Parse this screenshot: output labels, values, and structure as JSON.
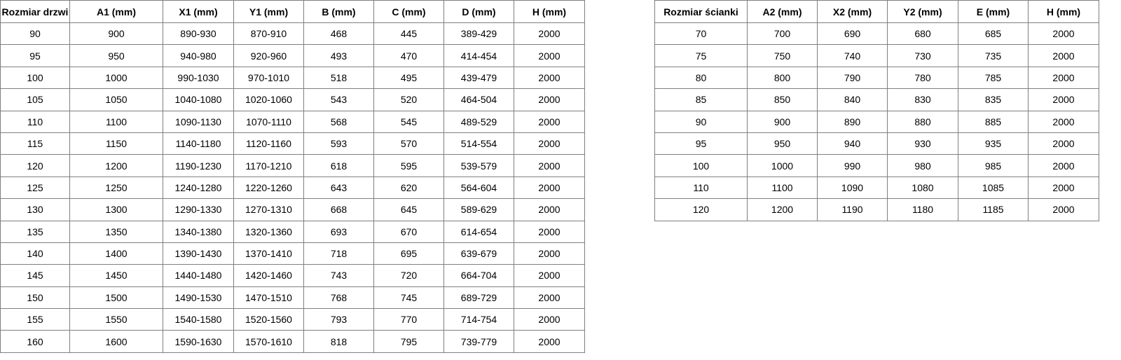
{
  "door_table": {
    "headers": [
      "Rozmiar drzwi",
      "A1 (mm)",
      "X1 (mm)",
      "Y1 (mm)",
      "B (mm)",
      "C (mm)",
      "D (mm)",
      "H (mm)"
    ],
    "rows": [
      [
        "90",
        "900",
        "890-930",
        "870-910",
        "468",
        "445",
        "389-429",
        "2000"
      ],
      [
        "95",
        "950",
        "940-980",
        "920-960",
        "493",
        "470",
        "414-454",
        "2000"
      ],
      [
        "100",
        "1000",
        "990-1030",
        "970-1010",
        "518",
        "495",
        "439-479",
        "2000"
      ],
      [
        "105",
        "1050",
        "1040-1080",
        "1020-1060",
        "543",
        "520",
        "464-504",
        "2000"
      ],
      [
        "110",
        "1100",
        "1090-1130",
        "1070-1110",
        "568",
        "545",
        "489-529",
        "2000"
      ],
      [
        "115",
        "1150",
        "1140-1180",
        "1120-1160",
        "593",
        "570",
        "514-554",
        "2000"
      ],
      [
        "120",
        "1200",
        "1190-1230",
        "1170-1210",
        "618",
        "595",
        "539-579",
        "2000"
      ],
      [
        "125",
        "1250",
        "1240-1280",
        "1220-1260",
        "643",
        "620",
        "564-604",
        "2000"
      ],
      [
        "130",
        "1300",
        "1290-1330",
        "1270-1310",
        "668",
        "645",
        "589-629",
        "2000"
      ],
      [
        "135",
        "1350",
        "1340-1380",
        "1320-1360",
        "693",
        "670",
        "614-654",
        "2000"
      ],
      [
        "140",
        "1400",
        "1390-1430",
        "1370-1410",
        "718",
        "695",
        "639-679",
        "2000"
      ],
      [
        "145",
        "1450",
        "1440-1480",
        "1420-1460",
        "743",
        "720",
        "664-704",
        "2000"
      ],
      [
        "150",
        "1500",
        "1490-1530",
        "1470-1510",
        "768",
        "745",
        "689-729",
        "2000"
      ],
      [
        "155",
        "1550",
        "1540-1580",
        "1520-1560",
        "793",
        "770",
        "714-754",
        "2000"
      ],
      [
        "160",
        "1600",
        "1590-1630",
        "1570-1610",
        "818",
        "795",
        "739-779",
        "2000"
      ]
    ]
  },
  "wall_table": {
    "headers": [
      "Rozmiar ścianki",
      "A2 (mm)",
      "X2 (mm)",
      "Y2 (mm)",
      "E (mm)",
      "H (mm)"
    ],
    "rows": [
      [
        "70",
        "700",
        "690",
        "680",
        "685",
        "2000"
      ],
      [
        "75",
        "750",
        "740",
        "730",
        "735",
        "2000"
      ],
      [
        "80",
        "800",
        "790",
        "780",
        "785",
        "2000"
      ],
      [
        "85",
        "850",
        "840",
        "830",
        "835",
        "2000"
      ],
      [
        "90",
        "900",
        "890",
        "880",
        "885",
        "2000"
      ],
      [
        "95",
        "950",
        "940",
        "930",
        "935",
        "2000"
      ],
      [
        "100",
        "1000",
        "990",
        "980",
        "985",
        "2000"
      ],
      [
        "110",
        "1100",
        "1090",
        "1080",
        "1085",
        "2000"
      ],
      [
        "120",
        "1200",
        "1190",
        "1180",
        "1185",
        "2000"
      ]
    ]
  }
}
